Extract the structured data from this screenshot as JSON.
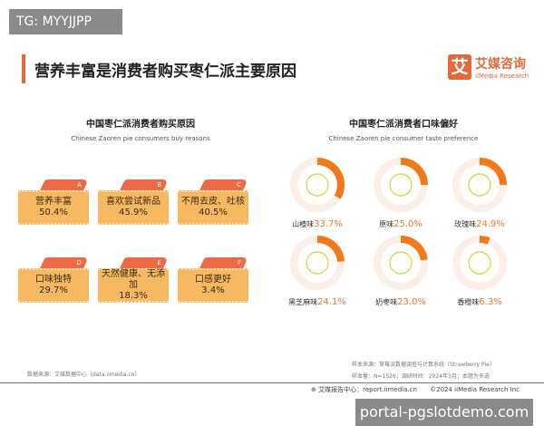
{
  "watermark_top": "TG: MYYJJPP",
  "watermark_bottom": "portal-pgslotdemo.com",
  "title": "营养丰富是消费者购买枣仁派主要原因",
  "logo": {
    "mark": "艾",
    "cn": "艾媒咨询",
    "en": "iiMedia Research"
  },
  "left": {
    "title_cn": "中国枣仁派消费者购买原因",
    "title_en": "Chinese Zaoren pie consumers buy reasons",
    "cards": [
      {
        "letter": "A",
        "label": "营养丰富",
        "value": "50.4%"
      },
      {
        "letter": "B",
        "label": "喜欢尝试新品",
        "value": "45.9%"
      },
      {
        "letter": "C",
        "label": "不用去皮、吐核",
        "value": "40.5%"
      },
      {
        "letter": "D",
        "label": "口味独特",
        "value": "29.7%"
      },
      {
        "letter": "E",
        "label": "天然健康、无添加",
        "value": "18.3%"
      },
      {
        "letter": "F",
        "label": "口感更好",
        "value": "3.4%"
      }
    ]
  },
  "right": {
    "title_cn": "中国枣仁派消费者口味偏好",
    "title_en": "Chinese Zaoren pie consumer taste preference",
    "items": [
      {
        "label": "山楂味",
        "value": "33.7%",
        "pct": 33.7,
        "icon": "hawthorn-icon"
      },
      {
        "label": "原味",
        "value": "25.0%",
        "pct": 25.0,
        "icon": "jujube-icon"
      },
      {
        "label": "玫瑰味",
        "value": "24.9%",
        "pct": 24.9,
        "icon": "rose-icon"
      },
      {
        "label": "黑芝麻味",
        "value": "24.1%",
        "pct": 24.1,
        "icon": "sesame-icon"
      },
      {
        "label": "奶枣味",
        "value": "23.0%",
        "pct": 23.0,
        "icon": "peanut-icon"
      },
      {
        "label": "香橙味",
        "value": "6.3%",
        "pct": 6.3,
        "icon": "orange-icon"
      }
    ]
  },
  "colors": {
    "accent": "#e06a3c",
    "ring": "#f07a1a",
    "card": "#f6b860"
  },
  "footer": {
    "data_source": "数据来源：艾媒数据中心（data.iimedia.cn）",
    "sample_source": "样本来源：草莓派数据调查与计算系统（Strawberry Pie）",
    "sample_info": "样本量：N=1526；调研时间：2024年3月；本题为多选",
    "report": "艾媒报告中心：report.iimedia.cn",
    "copyright": "©2024  iiMedia Research Inc"
  }
}
